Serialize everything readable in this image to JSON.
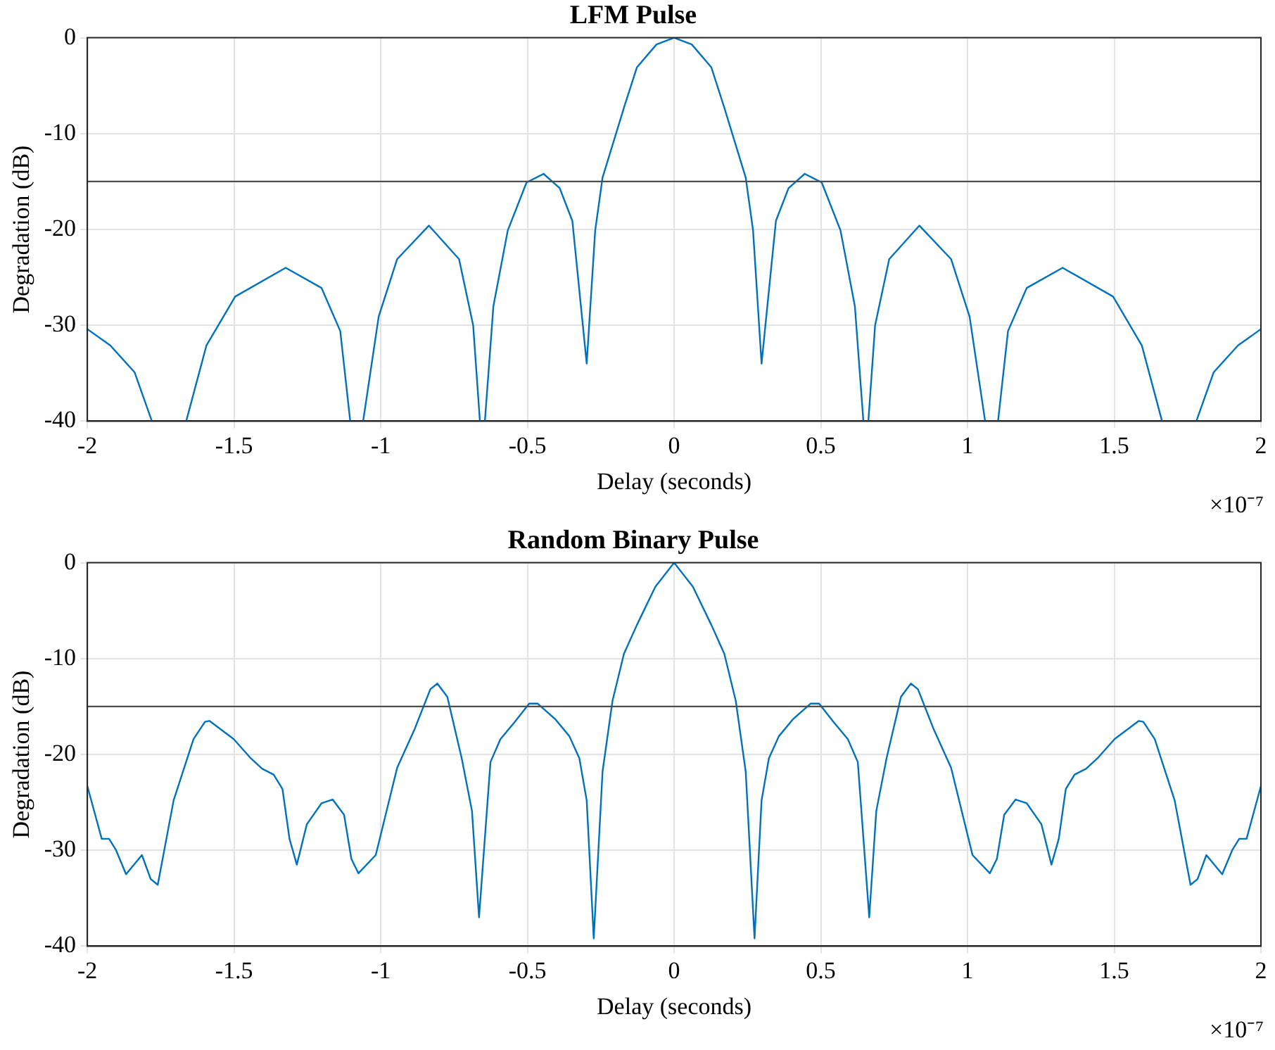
{
  "chart_data": [
    {
      "type": "line",
      "title": "LFM Pulse",
      "xlabel": "Delay (seconds)",
      "ylabel": "Degradation (dB)",
      "annotations": [
        "×10⁻⁷"
      ],
      "xlim": [
        -2,
        2
      ],
      "xticks": [
        -2,
        -1.5,
        -1,
        -0.5,
        0,
        0.5,
        1,
        1.5,
        2
      ],
      "ylim": [
        -40,
        0
      ],
      "yticks": [
        -40,
        -30,
        -20,
        -10,
        0
      ],
      "grid": true,
      "legend": false,
      "marker": "none",
      "line_style": "solid",
      "ref_lines": [
        {
          "axis": "y",
          "value": -15,
          "label": null,
          "color": "#4d4d4d"
        }
      ],
      "series": [
        {
          "color": "#0072bd",
          "x": [
            -2,
            -1.922,
            -1.839,
            -1.78,
            -1.72,
            -1.663,
            -1.594,
            -1.496,
            -1.324,
            -1.202,
            -1.138,
            -1.104,
            -1.08,
            -1.06,
            -1.007,
            -0.944,
            -0.836,
            -0.733,
            -0.685,
            -0.662,
            -0.655,
            -0.645,
            -0.616,
            -0.567,
            -0.503,
            -0.445,
            -0.39,
            -0.347,
            -0.298,
            -0.269,
            -0.244,
            -0.17,
            -0.127,
            -0.06,
            0,
            0.06,
            0.127,
            0.17,
            0.244,
            0.269,
            0.298,
            0.347,
            0.39,
            0.445,
            0.503,
            0.567,
            0.616,
            0.645,
            0.655,
            0.662,
            0.685,
            0.733,
            0.836,
            0.944,
            1.007,
            1.06,
            1.08,
            1.104,
            1.138,
            1.202,
            1.324,
            1.496,
            1.594,
            1.663,
            1.72,
            1.78,
            1.839,
            1.922,
            2
          ],
          "values": [
            -30.4,
            -32.1,
            -34.9,
            -40,
            null,
            -40,
            -32.1,
            -27,
            -24,
            -26.1,
            -30.6,
            -40,
            null,
            -40,
            -29.1,
            -23.1,
            -19.6,
            -23.1,
            -30,
            -40,
            null,
            -40,
            -28,
            -20.1,
            -15.1,
            -14.2,
            -15.7,
            -19.1,
            -34,
            -20.1,
            -14.6,
            -7.2,
            -3.1,
            -0.7,
            0,
            -0.7,
            -3.1,
            -7.2,
            -14.6,
            -20.1,
            -34,
            -19.1,
            -15.7,
            -14.2,
            -15.1,
            -20.1,
            -28,
            -40,
            null,
            -40,
            -30,
            -23.1,
            -19.6,
            -23.1,
            -29.1,
            -40,
            null,
            -40,
            -30.6,
            -26.1,
            -24,
            -27,
            -32.1,
            -40,
            null,
            -40,
            -34.9,
            -32.1,
            -30.4
          ]
        }
      ]
    },
    {
      "type": "line",
      "title": "Random Binary Pulse",
      "xlabel": "Delay (seconds)",
      "ylabel": "Degradation (dB)",
      "annotations": [
        "×10⁻⁷"
      ],
      "xlim": [
        -2,
        2
      ],
      "xticks": [
        -2,
        -1.5,
        -1,
        -0.5,
        0,
        0.5,
        1,
        1.5,
        2
      ],
      "ylim": [
        -40,
        0
      ],
      "yticks": [
        -40,
        -30,
        -20,
        -10,
        0
      ],
      "grid": true,
      "legend": false,
      "marker": "none",
      "line_style": "solid",
      "ref_lines": [
        {
          "axis": "y",
          "value": -15,
          "label": null,
          "color": "#4d4d4d"
        }
      ],
      "series": [
        {
          "color": "#0072bd",
          "x": [
            -2,
            -1.951,
            -1.926,
            -1.902,
            -1.868,
            -1.814,
            -1.784,
            -1.76,
            -1.706,
            -1.638,
            -1.599,
            -1.584,
            -1.501,
            -1.443,
            -1.404,
            -1.365,
            -1.335,
            -1.311,
            -1.286,
            -1.252,
            -1.202,
            -1.164,
            -1.125,
            -1.1,
            -1.076,
            -1.017,
            -0.944,
            -0.885,
            -0.831,
            -0.807,
            -0.773,
            -0.724,
            -0.689,
            -0.665,
            -0.626,
            -0.592,
            -0.543,
            -0.494,
            -0.465,
            -0.406,
            -0.357,
            -0.323,
            -0.298,
            -0.274,
            -0.244,
            -0.21,
            -0.171,
            -0.127,
            -0.064,
            0,
            0.064,
            0.127,
            0.171,
            0.21,
            0.244,
            0.274,
            0.298,
            0.323,
            0.357,
            0.406,
            0.465,
            0.494,
            0.543,
            0.592,
            0.626,
            0.665,
            0.689,
            0.724,
            0.773,
            0.807,
            0.831,
            0.885,
            0.944,
            1.017,
            1.076,
            1.1,
            1.125,
            1.164,
            1.202,
            1.252,
            1.286,
            1.311,
            1.335,
            1.365,
            1.404,
            1.443,
            1.501,
            1.584,
            1.599,
            1.638,
            1.706,
            1.76,
            1.784,
            1.814,
            1.868,
            1.902,
            1.926,
            1.951,
            2
          ],
          "values": [
            -23.3,
            -28.8,
            -28.8,
            -30,
            -32.5,
            -30.5,
            -33,
            -33.6,
            -24.8,
            -18.4,
            -16.6,
            -16.5,
            -18.4,
            -20.4,
            -21.5,
            -22.1,
            -23.6,
            -28.8,
            -31.5,
            -27.3,
            -25.1,
            -24.7,
            -26.3,
            -30.9,
            -32.4,
            -30.5,
            -21.4,
            -17.4,
            -13.2,
            -12.6,
            -14,
            -20.4,
            -25.9,
            -37,
            -20.8,
            -18.4,
            -16.6,
            -14.7,
            -14.7,
            -16.3,
            -18.1,
            -20.4,
            -24.8,
            -39.2,
            -21.8,
            -14.4,
            -9.5,
            -6.5,
            -2.5,
            0,
            -2.5,
            -6.5,
            -9.5,
            -14.4,
            -21.8,
            -39.2,
            -24.8,
            -20.4,
            -18.1,
            -16.3,
            -14.7,
            -14.7,
            -16.6,
            -18.4,
            -20.8,
            -37,
            -25.9,
            -20.4,
            -14,
            -12.6,
            -13.2,
            -17.4,
            -21.4,
            -30.5,
            -32.4,
            -30.9,
            -26.3,
            -24.7,
            -25.1,
            -27.3,
            -31.5,
            -28.8,
            -23.6,
            -22.1,
            -21.5,
            -20.4,
            -18.4,
            -16.5,
            -16.6,
            -18.4,
            -24.8,
            -33.6,
            -33,
            -30.5,
            -32.5,
            -30,
            -28.8,
            -28.8,
            -23.3
          ]
        }
      ]
    }
  ]
}
